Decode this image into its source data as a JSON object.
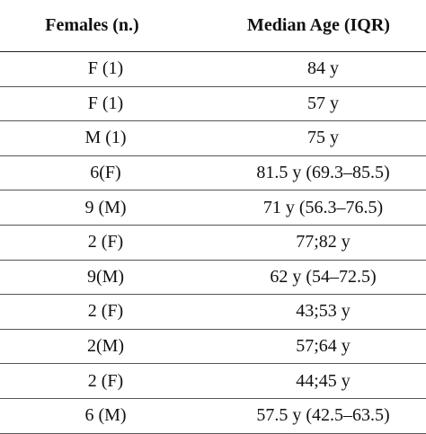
{
  "table": {
    "headers": [
      "Females (n.)",
      "Median Age (IQR)"
    ],
    "rows": [
      [
        "F (1)",
        "84 y"
      ],
      [
        "F (1)",
        "57 y"
      ],
      [
        "M (1)",
        "75 y"
      ],
      [
        "6(F)",
        "81.5 y (69.3–85.5)"
      ],
      [
        "9 (M)",
        "71 y (56.3–76.5)"
      ],
      [
        "2 (F)",
        "77;82 y"
      ],
      [
        "9(M)",
        "62 y (54–72.5)"
      ],
      [
        "2 (F)",
        "43;53 y"
      ],
      [
        "2(M)",
        "57;64 y"
      ],
      [
        "2 (F)",
        "44;45 y"
      ],
      [
        "6 (M)",
        "57.5 y (42.5–63.5)"
      ]
    ]
  }
}
